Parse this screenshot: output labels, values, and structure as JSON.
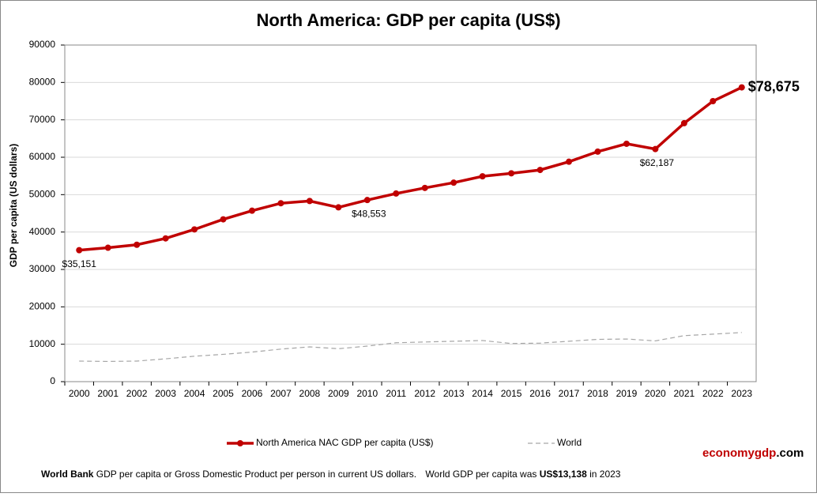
{
  "chart_data": {
    "type": "line",
    "title": "North America: GDP per capita (US$)",
    "ylabel": "GDP per capita (US dollars)",
    "categories": [
      "2000",
      "2001",
      "2002",
      "2003",
      "2004",
      "2005",
      "2006",
      "2007",
      "2008",
      "2009",
      "2010",
      "2011",
      "2012",
      "2013",
      "2014",
      "2015",
      "2016",
      "2017",
      "2018",
      "2019",
      "2020",
      "2021",
      "2022",
      "2023"
    ],
    "series": [
      {
        "name": "North America NAC GDP per capita (US$)",
        "color": "#c00000",
        "style": "solid",
        "values": [
          35151,
          35800,
          36600,
          38300,
          40700,
          43400,
          45700,
          47700,
          48300,
          46600,
          48553,
          50300,
          51800,
          53200,
          54900,
          55700,
          56600,
          58800,
          61500,
          63600,
          62187,
          69100,
          75000,
          78675
        ],
        "value_labels": [
          "$35,151",
          null,
          null,
          null,
          null,
          null,
          null,
          null,
          null,
          null,
          "$48,553",
          null,
          null,
          null,
          null,
          null,
          null,
          null,
          null,
          null,
          "$62,187",
          null,
          null,
          "$78,675"
        ]
      },
      {
        "name": "World",
        "color": "#a6a6a6",
        "style": "dashed",
        "values": [
          5500,
          5400,
          5500,
          6100,
          6800,
          7300,
          7900,
          8700,
          9300,
          8800,
          9500,
          10400,
          10600,
          10800,
          11000,
          10200,
          10300,
          10800,
          11300,
          11400,
          10900,
          12300,
          12700,
          13138
        ]
      }
    ],
    "ylim": [
      0,
      90000
    ],
    "yticks": [
      0,
      10000,
      20000,
      30000,
      40000,
      50000,
      60000,
      70000,
      80000,
      90000
    ],
    "grid": true,
    "legend": "bottom",
    "brand": [
      "economygdp",
      ".com"
    ],
    "footer": {
      "source": "World Bank",
      "text": "GDP per capita or Gross Domestic Product per person in current US dollars.",
      "world_text": "World GDP per capita was",
      "world_value": "US$13,138",
      "tail": "in 2023"
    }
  }
}
